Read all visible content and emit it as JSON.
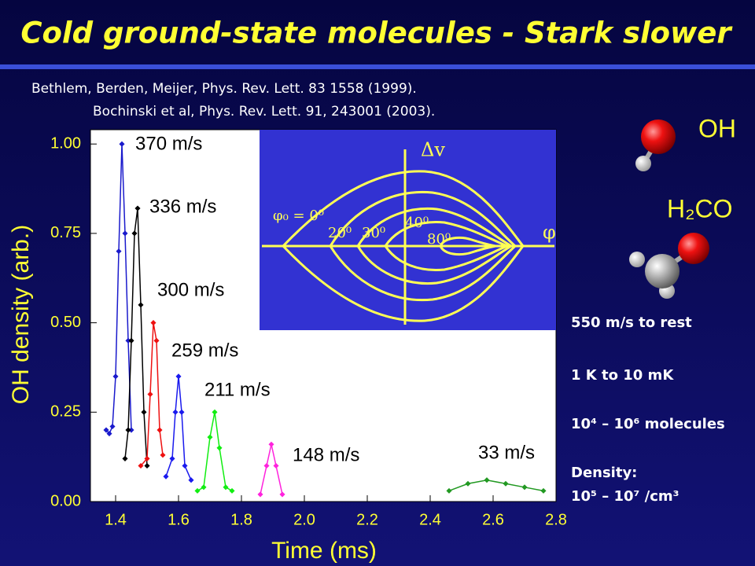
{
  "title": "Cold ground-state molecules - Stark slower",
  "citations": [
    "Bethlem, Berden, Meijer, Phys. Rev. Lett. 83 1558 (1999).",
    "Bochinski et al,  Phys. Rev. Lett. 91, 243001  (2003)."
  ],
  "chart_data": {
    "type": "line",
    "xlabel": "Time (ms)",
    "ylabel": "OH density (arb.)",
    "xlim": [
      1.32,
      2.8
    ],
    "ylim": [
      0,
      1.04
    ],
    "xticks": [
      1.4,
      1.6,
      1.8,
      {
        "value": 2,
        "label": "2.0"
      },
      2.2,
      2.4,
      2.6,
      2.8
    ],
    "yticks": [
      {
        "value": 0,
        "label": "0.00"
      },
      {
        "value": 0.25,
        "label": "0.25"
      },
      {
        "value": 0.5,
        "label": "0.50"
      },
      {
        "value": 0.75,
        "label": "0.75"
      },
      {
        "value": 1,
        "label": "1.00"
      }
    ],
    "series": [
      {
        "name": "370 m/s",
        "color": "#1a1acc",
        "x": [
          1.37,
          1.38,
          1.39,
          1.4,
          1.41,
          1.42,
          1.43,
          1.44,
          1.45
        ],
        "values": [
          0.2,
          0.19,
          0.21,
          0.35,
          0.7,
          1.0,
          0.75,
          0.45,
          0.2
        ]
      },
      {
        "name": "336 m/s",
        "color": "#000000",
        "x": [
          1.43,
          1.44,
          1.45,
          1.46,
          1.47,
          1.48,
          1.49,
          1.5
        ],
        "values": [
          0.12,
          0.2,
          0.45,
          0.75,
          0.82,
          0.55,
          0.25,
          0.1
        ]
      },
      {
        "name": "300 m/s",
        "color": "#ee1111",
        "x": [
          1.48,
          1.5,
          1.51,
          1.52,
          1.53,
          1.54,
          1.55
        ],
        "values": [
          0.1,
          0.12,
          0.3,
          0.5,
          0.45,
          0.2,
          0.13
        ]
      },
      {
        "name": "259 m/s",
        "color": "#1a1aee",
        "x": [
          1.56,
          1.58,
          1.59,
          1.6,
          1.61,
          1.62,
          1.64
        ],
        "values": [
          0.07,
          0.12,
          0.25,
          0.35,
          0.25,
          0.1,
          0.06
        ]
      },
      {
        "name": "211 m/s",
        "color": "#11ee11",
        "x": [
          1.66,
          1.68,
          1.7,
          1.715,
          1.73,
          1.75,
          1.77
        ],
        "values": [
          0.03,
          0.04,
          0.18,
          0.25,
          0.15,
          0.04,
          0.03
        ]
      },
      {
        "name": "148 m/s",
        "color": "#ff22dd",
        "x": [
          1.86,
          1.88,
          1.895,
          1.91,
          1.93
        ],
        "values": [
          0.02,
          0.1,
          0.16,
          0.1,
          0.02
        ]
      },
      {
        "name": "33 m/s",
        "color": "#229922",
        "x": [
          2.46,
          2.52,
          2.58,
          2.64,
          2.7,
          2.76
        ],
        "values": [
          0.03,
          0.05,
          0.06,
          0.05,
          0.04,
          0.03
        ]
      }
    ]
  },
  "inset": {
    "y_axis": "Δv",
    "x_axis": "φ",
    "phase_labels": [
      "φ₀ = 0⁰",
      "20⁰",
      "30⁰",
      "40⁰",
      "80⁰"
    ]
  },
  "molecules": [
    "OH",
    "H₂CO"
  ],
  "notes": [
    "550 m/s to rest",
    "1 K to 10 mK",
    "10⁴ – 10⁶ molecules",
    "Density:",
    "10⁵ – 10⁷ /cm³"
  ]
}
